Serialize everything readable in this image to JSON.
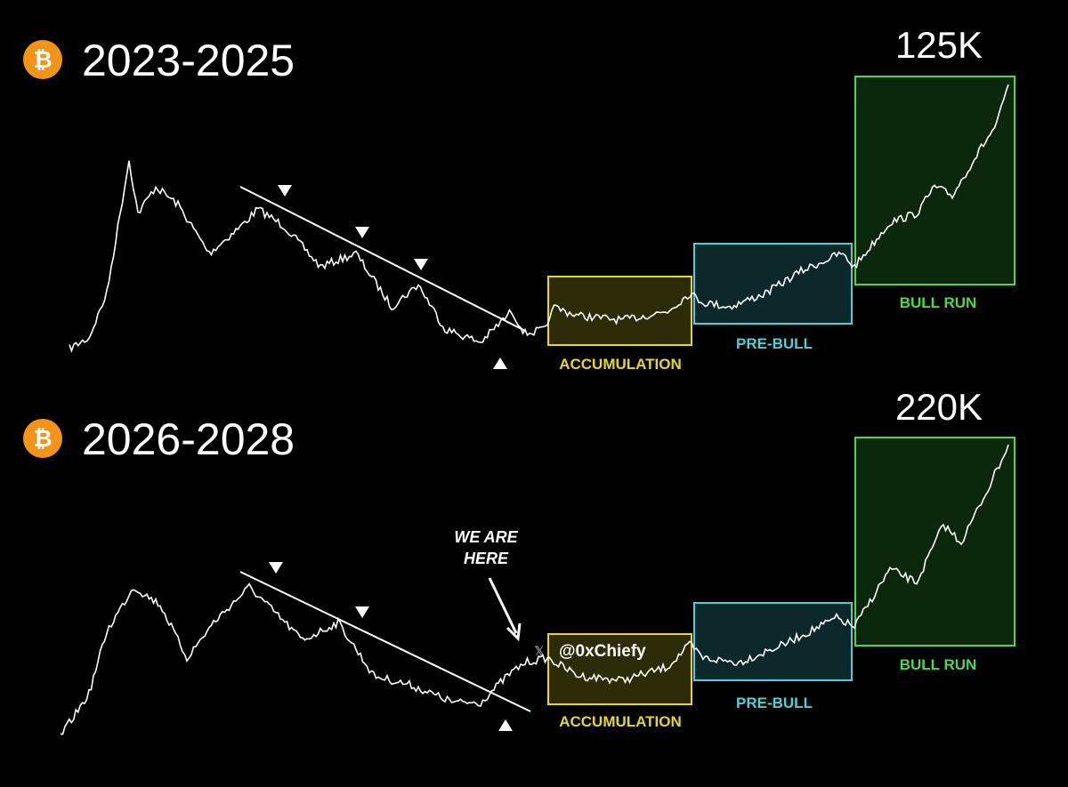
{
  "logo": "₿",
  "panels": [
    {
      "title": "2023-2025",
      "peak_label": "125K",
      "phases": [
        "ACCUMULATION",
        "PRE-BULL",
        "BULL RUN"
      ]
    },
    {
      "title": "2026-2028",
      "peak_label": "220K",
      "phases": [
        "ACCUMULATION",
        "PRE-BULL",
        "BULL RUN"
      ],
      "annotation": [
        "WE ARE",
        "HERE"
      ],
      "watermark": "@0xChiefy"
    }
  ]
}
